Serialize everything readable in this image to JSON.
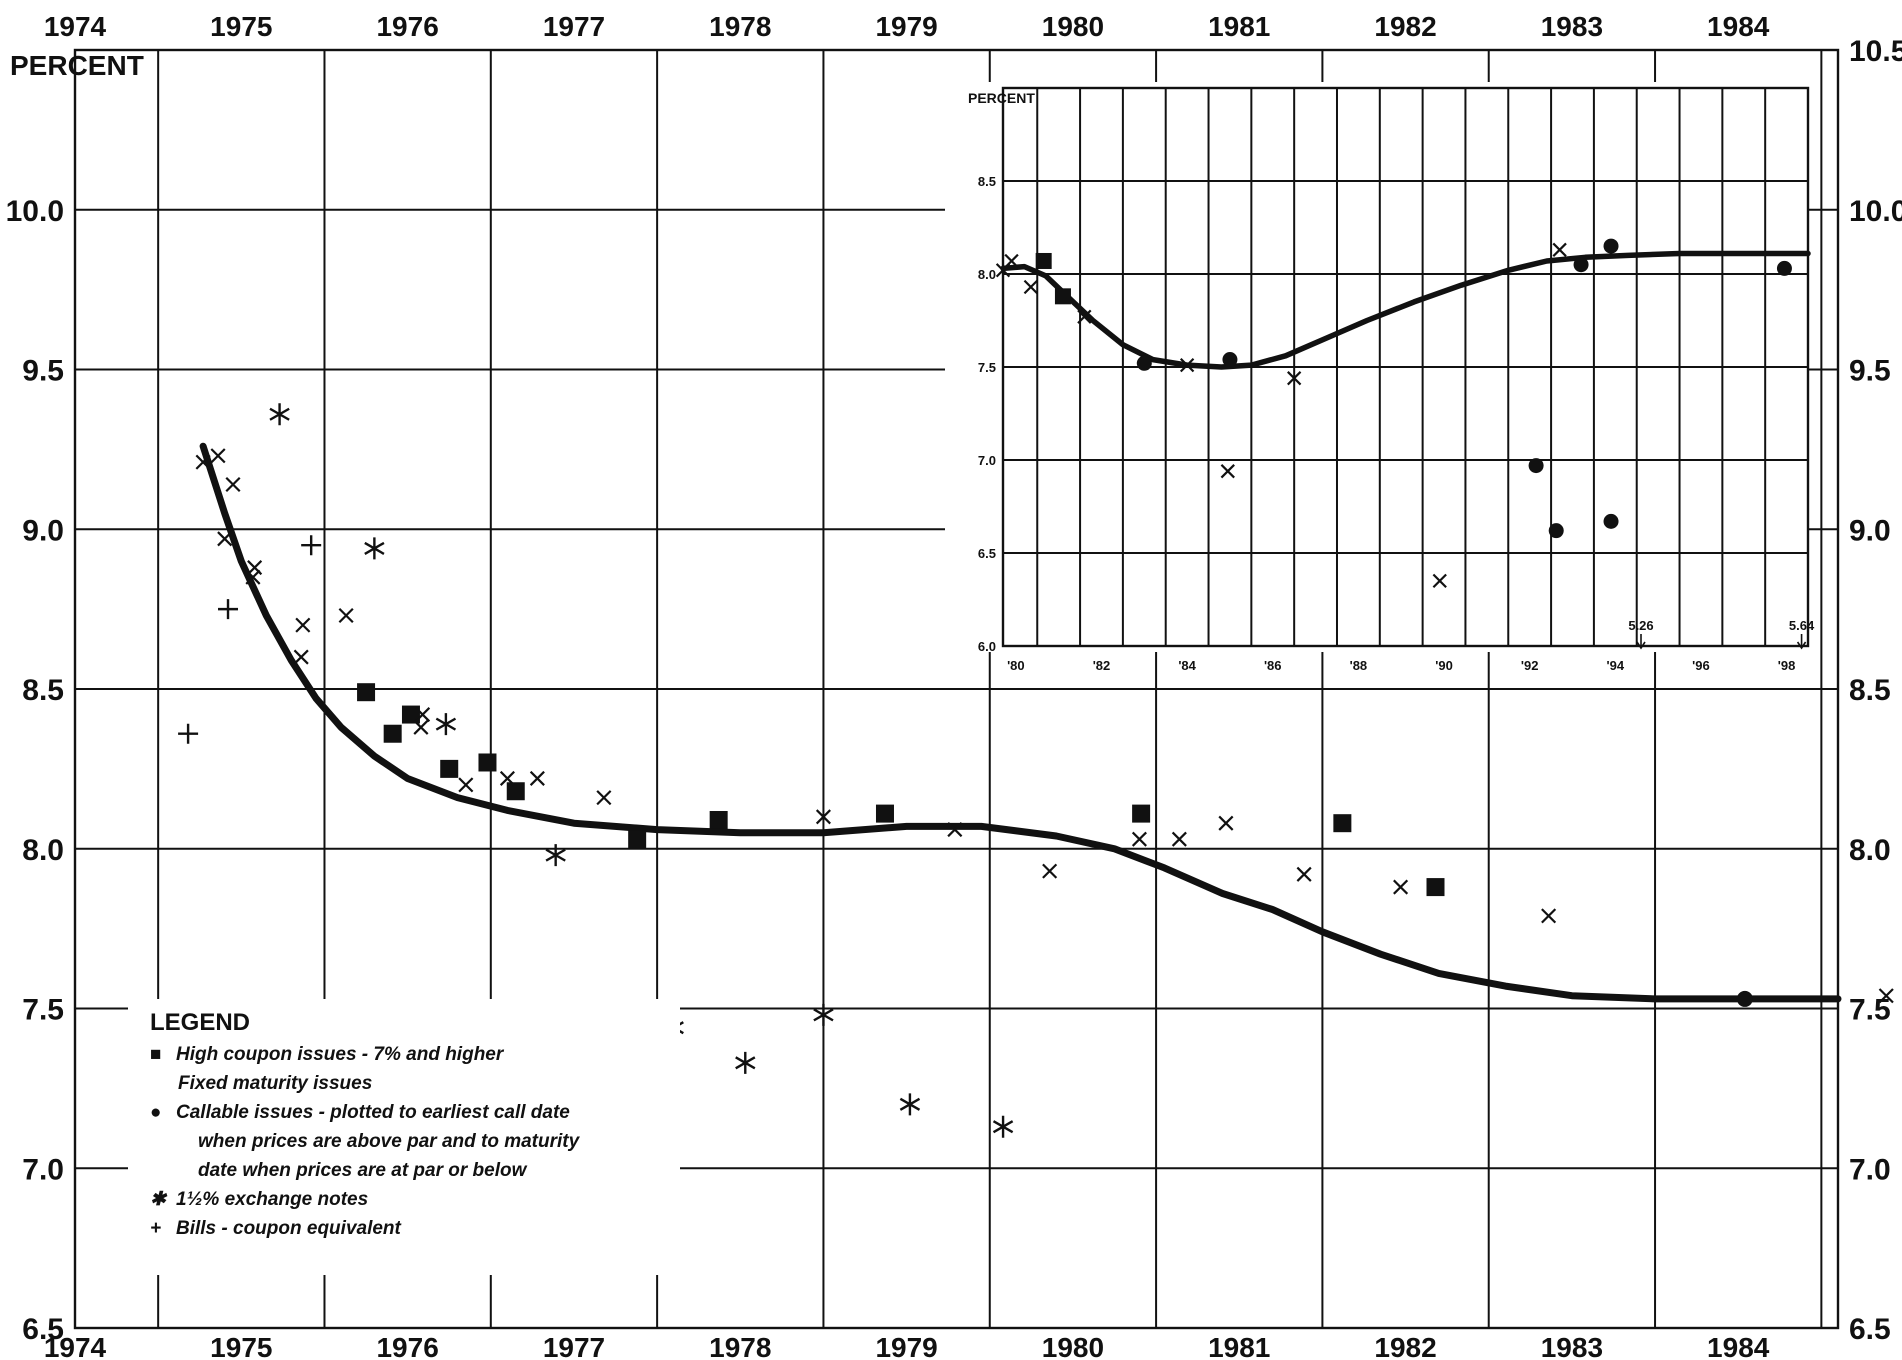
{
  "chart_data": [
    {
      "type": "scatter",
      "title": "",
      "ylabel": "PERCENT",
      "xlabel": "",
      "x_tick_labels": [
        "1974",
        "1975",
        "1976",
        "1977",
        "1978",
        "1979",
        "1980",
        "1981",
        "1982",
        "1983",
        "1984"
      ],
      "xlim": [
        1974.0,
        1984.6
      ],
      "y_tick_labels_left": [
        "6.5",
        "7.0",
        "7.5",
        "8.0",
        "8.5",
        "9.0",
        "9.5",
        "10.0"
      ],
      "y_tick_labels_right": [
        "6.5",
        "7.0",
        "7.5",
        "8.0",
        "8.5",
        "9.0",
        "9.5",
        "10.0",
        "10.5"
      ],
      "ylim": [
        6.5,
        10.5
      ],
      "grid": true,
      "trend_line": {
        "x": [
          1974.77,
          1974.9,
          1975.0,
          1975.15,
          1975.3,
          1975.45,
          1975.6,
          1975.8,
          1976.0,
          1976.3,
          1976.6,
          1977.0,
          1977.5,
          1978.0,
          1978.5,
          1979.0,
          1979.45,
          1979.9,
          1980.25,
          1980.55,
          1980.9,
          1981.2,
          1981.5,
          1981.85,
          1982.2,
          1982.6,
          1983.0,
          1983.5,
          1984.0,
          1984.6
        ],
        "y": [
          9.26,
          9.05,
          8.9,
          8.73,
          8.59,
          8.47,
          8.38,
          8.29,
          8.22,
          8.16,
          8.12,
          8.08,
          8.06,
          8.05,
          8.05,
          8.07,
          8.07,
          8.04,
          8.0,
          7.94,
          7.86,
          7.81,
          7.74,
          7.67,
          7.61,
          7.57,
          7.54,
          7.53,
          7.53,
          7.53
        ]
      },
      "series": [
        {
          "name": "High coupon issues - 7% and higher Fixed maturity issues",
          "marker": "square",
          "points": [
            [
              1975.75,
              8.49
            ],
            [
              1975.91,
              8.36
            ],
            [
              1976.02,
              8.42
            ],
            [
              1976.25,
              8.25
            ],
            [
              1976.48,
              8.27
            ],
            [
              1976.65,
              8.18
            ],
            [
              1977.38,
              8.03
            ],
            [
              1977.87,
              8.09
            ],
            [
              1978.87,
              8.11
            ],
            [
              1980.41,
              8.11
            ],
            [
              1981.62,
              8.08
            ],
            [
              1982.18,
              7.88
            ]
          ]
        },
        {
          "name": "Callable issues - plotted to earliest call date when prices are above par and to maturity date when prices are at par or below",
          "marker": "circle",
          "points": [
            [
              1984.04,
              7.53
            ]
          ]
        },
        {
          "name": "1½% exchange notes",
          "marker": "asterisk",
          "points": [
            [
              1975.23,
              9.36
            ],
            [
              1975.8,
              8.94
            ],
            [
              1976.23,
              8.39
            ],
            [
              1976.89,
              7.98
            ],
            [
              1977.6,
              7.44
            ],
            [
              1978.03,
              7.33
            ],
            [
              1978.5,
              7.48
            ],
            [
              1979.02,
              7.2
            ],
            [
              1979.58,
              7.13
            ]
          ]
        },
        {
          "name": "Bills - coupon equivalent",
          "marker": "plus",
          "points": [
            [
              1974.68,
              8.36
            ],
            [
              1974.92,
              8.75
            ],
            [
              1975.42,
              8.95
            ]
          ]
        },
        {
          "name": "",
          "marker": "x",
          "points": [
            [
              1974.77,
              9.21
            ],
            [
              1974.86,
              9.23
            ],
            [
              1974.9,
              8.97
            ],
            [
              1974.95,
              9.14
            ],
            [
              1975.07,
              8.85
            ],
            [
              1975.08,
              8.88
            ],
            [
              1975.36,
              8.6
            ],
            [
              1975.37,
              8.7
            ],
            [
              1975.63,
              8.73
            ],
            [
              1976.08,
              8.38
            ],
            [
              1976.09,
              8.42
            ],
            [
              1976.35,
              8.2
            ],
            [
              1976.6,
              8.22
            ],
            [
              1976.78,
              8.22
            ],
            [
              1977.18,
              8.16
            ],
            [
              1978.5,
              8.1
            ],
            [
              1979.29,
              8.06
            ],
            [
              1979.86,
              7.93
            ],
            [
              1980.4,
              8.03
            ],
            [
              1980.64,
              8.03
            ],
            [
              1980.92,
              8.08
            ],
            [
              1981.39,
              7.92
            ],
            [
              1981.97,
              7.88
            ],
            [
              1982.86,
              7.79
            ],
            [
              1984.89,
              7.54
            ]
          ]
        }
      ],
      "legend": {
        "title": "LEGEND",
        "placement": "bottom-left",
        "lines": [
          {
            "symbol": "■",
            "text": "High coupon issues - 7% and higher"
          },
          {
            "symbol": "",
            "text": "Fixed maturity issues"
          },
          {
            "symbol": "●",
            "text": "Callable issues - plotted to earliest call date"
          },
          {
            "symbol": "",
            "text": "when prices are above par and to maturity"
          },
          {
            "symbol": "",
            "text": "date when prices are at par or below"
          },
          {
            "symbol": "✱",
            "text": "1½% exchange notes"
          },
          {
            "symbol": "+",
            "text": "Bills - coupon equivalent"
          }
        ]
      }
    },
    {
      "type": "scatter",
      "title": "",
      "ylabel": "PERCENT",
      "xlabel": "",
      "placement": "top-right inset",
      "x_tick_labels": [
        "'80",
        "'82",
        "'84",
        "'86",
        "'88",
        "'90",
        "'92",
        "'94",
        "'96",
        "'98"
      ],
      "xlim": [
        1979.7,
        1998.5
      ],
      "y_tick_labels": [
        "6.0",
        "6.5",
        "7.0",
        "7.5",
        "8.0",
        "8.5"
      ],
      "ylim": [
        6.0,
        9.0
      ],
      "grid": true,
      "trend_line": {
        "x": [
          1979.7,
          1980.2,
          1980.7,
          1981.2,
          1981.8,
          1982.5,
          1983.2,
          1984.0,
          1984.8,
          1985.5,
          1986.3,
          1987.2,
          1988.2,
          1989.3,
          1990.4,
          1991.5,
          1992.4,
          1993.3,
          1994.3,
          1995.5,
          1996.8,
          1998.5
        ],
        "y": [
          8.03,
          8.04,
          7.99,
          7.88,
          7.75,
          7.62,
          7.54,
          7.51,
          7.5,
          7.51,
          7.56,
          7.65,
          7.75,
          7.85,
          7.94,
          8.02,
          8.07,
          8.09,
          8.1,
          8.11,
          8.11,
          8.11
        ]
      },
      "series": [
        {
          "name": "",
          "marker": "square",
          "points": [
            [
              1980.65,
              8.07
            ],
            [
              1981.1,
              7.88
            ]
          ]
        },
        {
          "name": "",
          "marker": "circle",
          "points": [
            [
              1983.0,
              7.52
            ],
            [
              1985.0,
              7.54
            ],
            [
              1992.15,
              6.97
            ],
            [
              1992.62,
              6.62
            ],
            [
              1993.2,
              8.05
            ],
            [
              1993.9,
              8.15
            ],
            [
              1993.9,
              6.67
            ],
            [
              1997.95,
              8.03
            ]
          ]
        },
        {
          "name": "",
          "marker": "x",
          "points": [
            [
              1979.7,
              8.02
            ],
            [
              1979.9,
              8.07
            ],
            [
              1980.35,
              7.93
            ],
            [
              1981.6,
              7.77
            ],
            [
              1984.0,
              7.51
            ],
            [
              1984.95,
              6.94
            ],
            [
              1986.5,
              7.44
            ],
            [
              1989.9,
              6.35
            ],
            [
              1992.7,
              8.13
            ]
          ]
        }
      ],
      "annotations": [
        {
          "text": "5.26",
          "x": 1994.6
        },
        {
          "text": "5.64",
          "x": 1998.35
        }
      ]
    }
  ]
}
